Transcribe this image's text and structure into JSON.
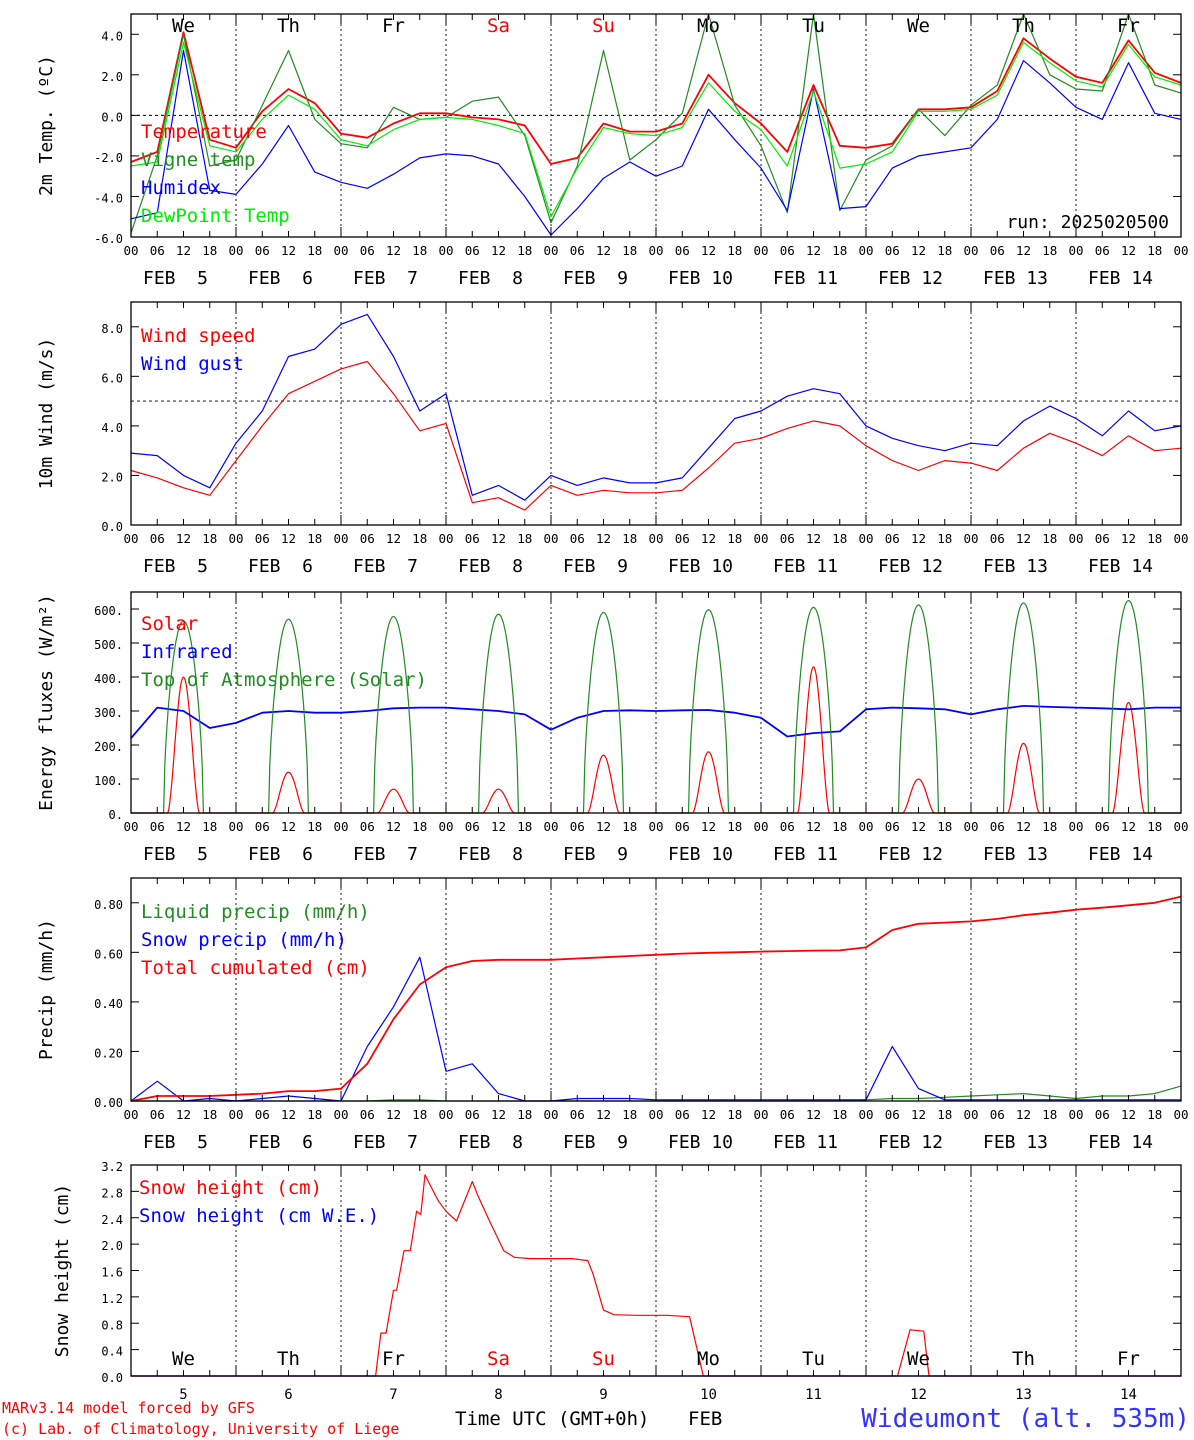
{
  "footer": {
    "credit1": "MARv3.14 model forced by GFS",
    "credit2": "(c) Lab. of Climatology, University of Liege",
    "xaxis_title": "Time UTC (GMT+0h)",
    "month": "FEB",
    "station": "Wideumont (alt. 535m)"
  },
  "hour_ticks": [
    "00",
    "06",
    "12",
    "18"
  ],
  "date_labels": [
    "FEB  5",
    "FEB  6",
    "FEB  7",
    "FEB  8",
    "FEB  9",
    "FEB 10",
    "FEB 11",
    "FEB 12",
    "FEB 13",
    "FEB 14"
  ],
  "day_numbers": [
    "5",
    "6",
    "7",
    "8",
    "9",
    "10",
    "11",
    "12",
    "13",
    "14"
  ],
  "weekdays": [
    {
      "name": "We",
      "color": "#000000"
    },
    {
      "name": "Th",
      "color": "#000000"
    },
    {
      "name": "Fr",
      "color": "#000000"
    },
    {
      "name": "Sa",
      "color": "#ff0000"
    },
    {
      "name": "Su",
      "color": "#ff0000"
    },
    {
      "name": "Mo",
      "color": "#000000"
    },
    {
      "name": "Tu",
      "color": "#000000"
    },
    {
      "name": "We",
      "color": "#000000"
    },
    {
      "name": "Th",
      "color": "#000000"
    },
    {
      "name": "Fr",
      "color": "#000000"
    }
  ],
  "chart_data": [
    {
      "type": "line",
      "ylabel": "2m Temp. (ºC)",
      "ylim": [
        -6,
        5
      ],
      "yticks": [
        "-6.0",
        "-4.0",
        "-2.0",
        "0.0",
        "2.0",
        "4.0"
      ],
      "ref_line": 0,
      "note": "run: 2025020500",
      "x_days": [
        0,
        0.25,
        0.5,
        0.75,
        1,
        1.25,
        1.5,
        1.75,
        2,
        2.25,
        2.5,
        2.75,
        3,
        3.25,
        3.5,
        3.75,
        4,
        4.25,
        4.5,
        4.75,
        5,
        5.25,
        5.5,
        5.75,
        6,
        6.25,
        6.5,
        6.75,
        7,
        7.25,
        7.5,
        7.75,
        8,
        8.25,
        8.5,
        8.75,
        9,
        9.25,
        9.5,
        9.75,
        10
      ],
      "series": [
        {
          "name": "Temperature",
          "color": "#ff0000",
          "values": [
            -2.3,
            -1.8,
            4.1,
            -1.2,
            -1.6,
            0.2,
            1.3,
            0.6,
            -0.9,
            -1.1,
            -0.4,
            0.1,
            0.1,
            -0.1,
            -0.2,
            -0.5,
            -2.4,
            -2.1,
            -0.4,
            -0.8,
            -0.8,
            -0.4,
            2.0,
            0.6,
            -0.4,
            -1.8,
            1.5,
            -1.5,
            -1.6,
            -1.4,
            0.3,
            0.3,
            0.4,
            1.2,
            3.8,
            2.8,
            1.9,
            1.6,
            3.7,
            2.1,
            1.6
          ]
        },
        {
          "name": "Vigne temp",
          "color": "#228b22",
          "values": [
            -5.8,
            -2.0,
            4.0,
            -2.5,
            -2.2,
            0.5,
            3.2,
            -0.2,
            -1.4,
            -1.6,
            0.4,
            -0.2,
            -0.1,
            0.7,
            0.9,
            -1.0,
            -5.3,
            -2.5,
            3.2,
            -2.2,
            -1.2,
            0.1,
            5.0,
            0.5,
            -1.5,
            -4.8,
            5.0,
            -4.7,
            -2.2,
            -1.5,
            0.3,
            -1.0,
            0.5,
            1.5,
            5.0,
            2.0,
            1.3,
            1.2,
            5.0,
            1.5,
            1.1
          ]
        },
        {
          "name": "Humidex",
          "color": "#0000ff",
          "values": [
            -5.1,
            -4.8,
            3.2,
            -3.7,
            -3.9,
            -2.4,
            -0.5,
            -2.8,
            -3.3,
            -3.6,
            -2.9,
            -2.1,
            -1.9,
            -2.0,
            -2.4,
            -4.0,
            -5.9,
            -4.6,
            -3.1,
            -2.3,
            -3.0,
            -2.5,
            0.3,
            -1.2,
            -2.6,
            -4.7,
            1.3,
            -4.6,
            -4.5,
            -2.6,
            -2.0,
            -1.8,
            -1.6,
            -0.2,
            2.7,
            1.6,
            0.4,
            -0.2,
            2.6,
            0.1,
            -0.2
          ]
        },
        {
          "name": "DewPoint Temp",
          "color": "#00ee00",
          "values": [
            -2.5,
            -2.3,
            3.6,
            -1.5,
            -1.8,
            -0.2,
            1.0,
            0.3,
            -1.2,
            -1.5,
            -0.7,
            -0.2,
            -0.1,
            -0.2,
            -0.5,
            -0.9,
            -5.0,
            -2.6,
            -0.6,
            -0.9,
            -1.0,
            -0.6,
            1.6,
            0.2,
            -0.7,
            -2.5,
            1.2,
            -2.6,
            -2.4,
            -1.8,
            0.2,
            0.2,
            0.3,
            1.0,
            3.6,
            2.6,
            1.7,
            1.4,
            3.5,
            1.9,
            1.5
          ]
        }
      ]
    },
    {
      "type": "line",
      "ylabel": "10m Wind (m/s)",
      "ylim": [
        0,
        9
      ],
      "yticks": [
        "0.0",
        "2.0",
        "4.0",
        "6.0",
        "8.0"
      ],
      "ref_line": 5,
      "x_days": [
        0,
        0.25,
        0.5,
        0.75,
        1,
        1.25,
        1.5,
        1.75,
        2,
        2.25,
        2.5,
        2.75,
        3,
        3.25,
        3.5,
        3.75,
        4,
        4.25,
        4.5,
        4.75,
        5,
        5.25,
        5.5,
        5.75,
        6,
        6.25,
        6.5,
        6.75,
        7,
        7.25,
        7.5,
        7.75,
        8,
        8.25,
        8.5,
        8.75,
        9,
        9.25,
        9.5,
        9.75,
        10
      ],
      "series": [
        {
          "name": "Wind speed",
          "color": "#ff0000",
          "values": [
            2.2,
            1.9,
            1.5,
            1.2,
            2.6,
            4.0,
            5.3,
            5.8,
            6.3,
            6.6,
            5.3,
            3.8,
            4.1,
            0.9,
            1.1,
            0.6,
            1.6,
            1.2,
            1.4,
            1.3,
            1.3,
            1.4,
            2.3,
            3.3,
            3.5,
            3.9,
            4.2,
            4.0,
            3.2,
            2.6,
            2.2,
            2.6,
            2.5,
            2.2,
            3.1,
            3.7,
            3.3,
            2.8,
            3.6,
            3.0,
            3.1
          ]
        },
        {
          "name": "Wind gust",
          "color": "#0000ff",
          "values": [
            2.9,
            2.8,
            2.0,
            1.5,
            3.3,
            4.6,
            6.8,
            7.1,
            8.1,
            8.5,
            6.8,
            4.6,
            5.3,
            1.2,
            1.6,
            1.0,
            2.0,
            1.6,
            1.9,
            1.7,
            1.7,
            1.9,
            3.1,
            4.3,
            4.6,
            5.2,
            5.5,
            5.3,
            4.0,
            3.5,
            3.2,
            3.0,
            3.3,
            3.2,
            4.2,
            4.8,
            4.3,
            3.6,
            4.6,
            3.8,
            4.0
          ]
        }
      ]
    },
    {
      "type": "line",
      "ylabel": "Energy fluxes (W/m²)",
      "ylim": [
        0,
        650
      ],
      "yticks": [
        "0.",
        "100.",
        "200.",
        "300.",
        "400.",
        "500.",
        "600."
      ],
      "peak_day_fraction": 0.5,
      "series": [
        {
          "name": "Solar",
          "color": "#ff0000",
          "daily_peaks": [
            400,
            120,
            70,
            70,
            170,
            180,
            430,
            100,
            205,
            325
          ]
        },
        {
          "name": "Infrared",
          "color": "#0000ff",
          "x_days": [
            0,
            0.25,
            0.5,
            0.75,
            1,
            1.25,
            1.5,
            1.75,
            2,
            2.25,
            2.5,
            2.75,
            3,
            3.25,
            3.5,
            3.75,
            4,
            4.25,
            4.5,
            4.75,
            5,
            5.25,
            5.5,
            5.75,
            6,
            6.25,
            6.5,
            6.75,
            7,
            7.25,
            7.5,
            7.75,
            8,
            8.25,
            8.5,
            8.75,
            9,
            9.25,
            9.5,
            9.75,
            10
          ],
          "values": [
            220,
            310,
            300,
            250,
            265,
            295,
            300,
            295,
            295,
            300,
            308,
            310,
            310,
            305,
            300,
            290,
            245,
            280,
            300,
            302,
            300,
            302,
            303,
            295,
            280,
            225,
            235,
            240,
            305,
            310,
            308,
            305,
            290,
            305,
            315,
            312,
            310,
            308,
            305,
            310,
            310
          ]
        },
        {
          "name": "Top of Atmosphere (Solar)",
          "color": "#228b22",
          "daily_peaks": [
            565,
            570,
            578,
            585,
            590,
            598,
            605,
            612,
            618,
            625
          ]
        }
      ]
    },
    {
      "type": "line",
      "ylabel": "Precip (mm/h)",
      "ylim": [
        0,
        0.9
      ],
      "yticks": [
        "0.00",
        "0.20",
        "0.40",
        "0.60",
        "0.80"
      ],
      "x_days": [
        0,
        0.25,
        0.5,
        0.75,
        1,
        1.25,
        1.5,
        1.75,
        2,
        2.25,
        2.5,
        2.75,
        3,
        3.25,
        3.5,
        3.75,
        4,
        4.25,
        4.5,
        4.75,
        5,
        5.25,
        5.5,
        5.75,
        6,
        6.25,
        6.5,
        6.75,
        7,
        7.25,
        7.5,
        7.75,
        8,
        8.25,
        8.5,
        8.75,
        9,
        9.25,
        9.5,
        9.75,
        10
      ],
      "series": [
        {
          "name": "Liquid precip (mm/h)",
          "color": "#228b22",
          "values": [
            0,
            0,
            0,
            0,
            0,
            0,
            0,
            0,
            0,
            0,
            0.005,
            0.005,
            0,
            0,
            0,
            0,
            0,
            0,
            0,
            0,
            0,
            0,
            0,
            0,
            0,
            0,
            0,
            0,
            0.005,
            0.01,
            0.01,
            0.015,
            0.02,
            0.025,
            0.03,
            0.02,
            0.01,
            0.02,
            0.02,
            0.03,
            0.06
          ]
        },
        {
          "name": "Snow precip (mm/h)",
          "color": "#0000ff",
          "values": [
            0,
            0.08,
            0,
            0.01,
            0,
            0.01,
            0.02,
            0.01,
            0,
            0.22,
            0.38,
            0.58,
            0.12,
            0.15,
            0.03,
            0,
            0,
            0.01,
            0.01,
            0.01,
            0.005,
            0.005,
            0.005,
            0.005,
            0.005,
            0.005,
            0.005,
            0.005,
            0.005,
            0.22,
            0.05,
            0.005,
            0.005,
            0.005,
            0.005,
            0.005,
            0.005,
            0.005,
            0.005,
            0.005,
            0.005
          ]
        },
        {
          "name": "Total cumulated (cm)",
          "color": "#ff0000",
          "values": [
            0,
            0.02,
            0.02,
            0.02,
            0.025,
            0.03,
            0.04,
            0.04,
            0.05,
            0.15,
            0.33,
            0.47,
            0.54,
            0.565,
            0.57,
            0.57,
            0.57,
            0.575,
            0.58,
            0.585,
            0.59,
            0.595,
            0.598,
            0.6,
            0.603,
            0.605,
            0.607,
            0.608,
            0.62,
            0.69,
            0.715,
            0.72,
            0.725,
            0.735,
            0.75,
            0.76,
            0.772,
            0.78,
            0.79,
            0.8,
            0.825
          ]
        }
      ]
    },
    {
      "type": "line",
      "ylabel": "Snow height (cm)",
      "ylim": [
        0,
        3.2
      ],
      "yticks": [
        "0.0",
        "0.4",
        "0.8",
        "1.2",
        "1.6",
        "2.0",
        "2.4",
        "2.8",
        "3.2"
      ],
      "series": [
        {
          "name": "Snow height (cm)",
          "color": "#ff0000",
          "x_days": [
            0,
            2.33,
            2.38,
            2.43,
            2.5,
            2.53,
            2.6,
            2.66,
            2.72,
            2.76,
            2.8,
            2.88,
            2.93,
            3,
            3.1,
            3.25,
            3.3,
            3.4,
            3.55,
            3.65,
            3.8,
            4.0,
            4.2,
            4.35,
            4.4,
            4.5,
            4.6,
            4.8,
            5.0,
            5.1,
            5.32,
            5.45,
            7.0,
            7.3,
            7.42,
            7.55,
            7.6,
            10
          ],
          "values": [
            0,
            0,
            0.65,
            0.65,
            1.3,
            1.3,
            1.9,
            1.9,
            2.5,
            2.45,
            3.05,
            2.8,
            2.65,
            2.5,
            2.35,
            2.95,
            2.75,
            2.4,
            1.9,
            1.8,
            1.78,
            1.78,
            1.78,
            1.75,
            1.55,
            1.0,
            0.93,
            0.92,
            0.92,
            0.92,
            0.9,
            0,
            0,
            0,
            0.7,
            0.68,
            0,
            0
          ]
        },
        {
          "name": "Snow height (cm W.E.)",
          "color": "#0000ff",
          "x_days": [
            0,
            10
          ],
          "values": [
            0,
            0
          ]
        }
      ]
    }
  ]
}
